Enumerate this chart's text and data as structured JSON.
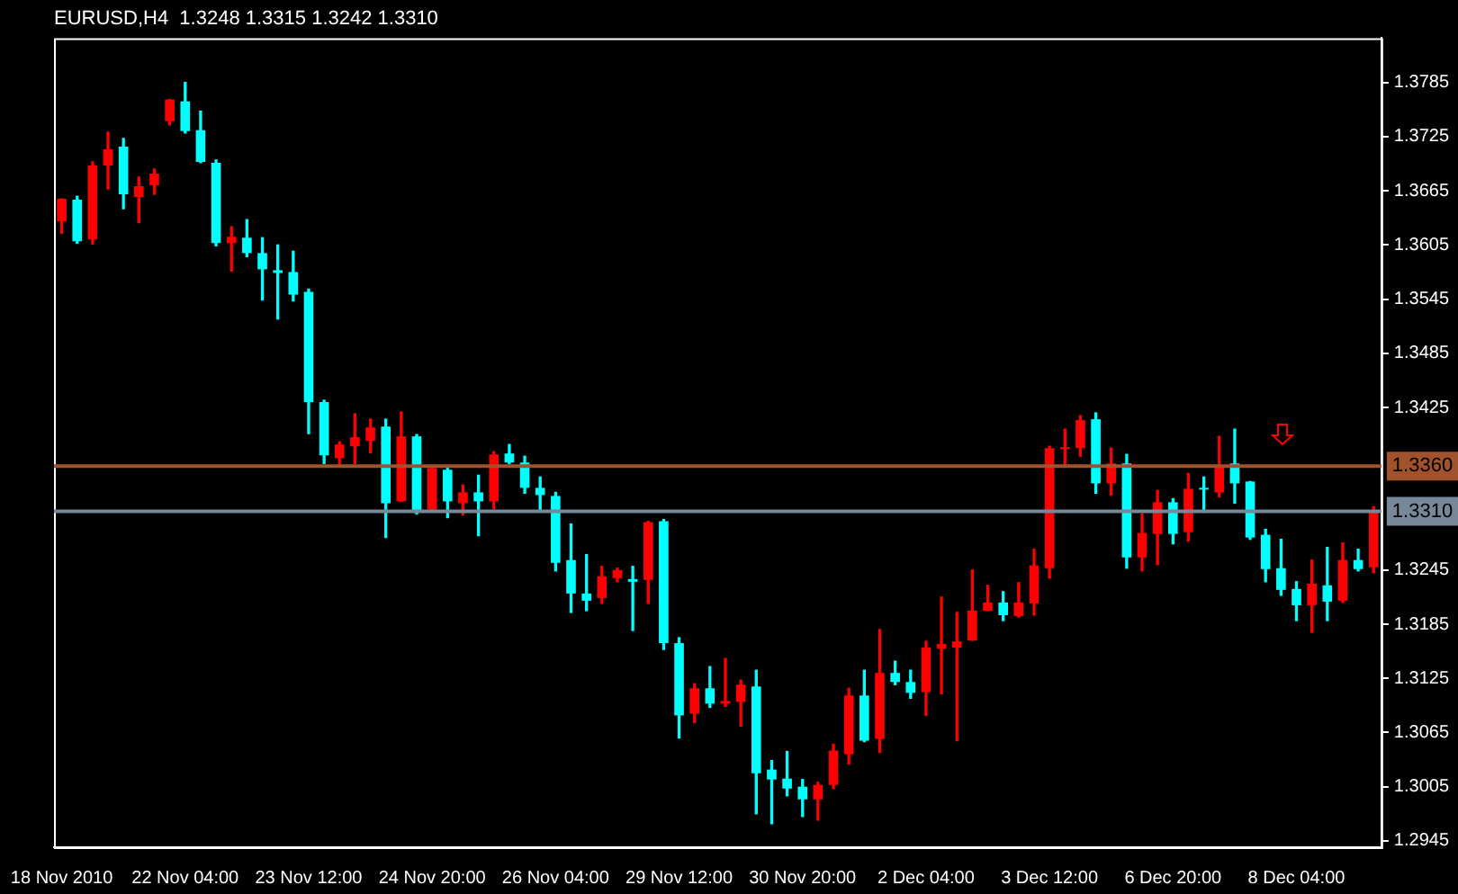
{
  "chart_data": {
    "type": "candlestick",
    "title": "EURUSD,H4  1.3248 1.3315 1.3242 1.3310",
    "categories": [
      "18 Nov 2010",
      null,
      null,
      null,
      null,
      null,
      null,
      null,
      "22 Nov 04:00",
      null,
      null,
      null,
      null,
      null,
      null,
      null,
      "23 Nov 12:00",
      null,
      null,
      null,
      null,
      null,
      null,
      null,
      "24 Nov 20:00",
      null,
      null,
      null,
      null,
      null,
      null,
      null,
      "26 Nov 04:00",
      null,
      null,
      null,
      null,
      null,
      null,
      null,
      "29 Nov 12:00",
      null,
      null,
      null,
      null,
      null,
      null,
      null,
      "30 Nov 20:00",
      null,
      null,
      null,
      null,
      null,
      null,
      null,
      "2 Dec 04:00",
      null,
      null,
      null,
      null,
      null,
      null,
      null,
      "3 Dec 12:00",
      null,
      null,
      null,
      null,
      null,
      null,
      null,
      "6 Dec 20:00",
      null,
      null,
      null,
      null,
      null,
      null,
      null,
      "8 Dec 04:00",
      null,
      null,
      null,
      null,
      null
    ],
    "ohlc": [
      [
        1.3631,
        1.3656,
        1.3618,
        1.3656
      ],
      [
        1.3655,
        1.3659,
        1.3607,
        1.3609
      ],
      [
        1.3611,
        1.3697,
        1.3606,
        1.3693
      ],
      [
        1.3693,
        1.373,
        1.3667,
        1.3711
      ],
      [
        1.3714,
        1.3723,
        1.3645,
        1.3661
      ],
      [
        1.3658,
        1.368,
        1.363,
        1.367
      ],
      [
        1.3671,
        1.3689,
        1.3661,
        1.3684
      ],
      [
        1.3742,
        1.3766,
        1.3738,
        1.3766
      ],
      [
        1.3764,
        1.3785,
        1.3729,
        1.3731
      ],
      [
        1.3732,
        1.3753,
        1.3696,
        1.3697
      ],
      [
        1.3696,
        1.3699,
        1.3604,
        1.3607
      ],
      [
        1.3607,
        1.3625,
        1.3576,
        1.3614
      ],
      [
        1.3613,
        1.3633,
        1.3592,
        1.3596
      ],
      [
        1.3596,
        1.3613,
        1.3544,
        1.3578
      ],
      [
        1.3577,
        1.3605,
        1.3523,
        1.3574
      ],
      [
        1.3575,
        1.3598,
        1.3543,
        1.355
      ],
      [
        1.3553,
        1.3556,
        1.3396,
        1.3431
      ],
      [
        1.3431,
        1.3433,
        1.3363,
        1.3372
      ],
      [
        1.3369,
        1.3387,
        1.3361,
        1.3384
      ],
      [
        1.3382,
        1.3418,
        1.3363,
        1.3392
      ],
      [
        1.3388,
        1.3412,
        1.3375,
        1.3403
      ],
      [
        1.3404,
        1.3412,
        1.3281,
        1.3319
      ],
      [
        1.3321,
        1.342,
        1.3321,
        1.3393
      ],
      [
        1.3393,
        1.3395,
        1.3307,
        1.3311
      ],
      [
        1.3312,
        1.336,
        1.3312,
        1.3358
      ],
      [
        1.3356,
        1.3358,
        1.3303,
        1.3321
      ],
      [
        1.3319,
        1.3339,
        1.3306,
        1.3331
      ],
      [
        1.3331,
        1.335,
        1.3283,
        1.3321
      ],
      [
        1.3321,
        1.3376,
        1.3313,
        1.3373
      ],
      [
        1.3374,
        1.3384,
        1.3363,
        1.3364
      ],
      [
        1.3364,
        1.3371,
        1.333,
        1.3336
      ],
      [
        1.3336,
        1.3348,
        1.3312,
        1.3328
      ],
      [
        1.3327,
        1.3331,
        1.3244,
        1.3253
      ],
      [
        1.3256,
        1.3296,
        1.3198,
        1.3219
      ],
      [
        1.3219,
        1.3262,
        1.32,
        1.3211
      ],
      [
        1.3214,
        1.3249,
        1.3208,
        1.3238
      ],
      [
        1.3236,
        1.3247,
        1.3232,
        1.3245
      ],
      [
        1.3235,
        1.3249,
        1.3178,
        1.3232
      ],
      [
        1.3234,
        1.3299,
        1.3208,
        1.3298
      ],
      [
        1.3299,
        1.3301,
        1.3157,
        1.3164
      ],
      [
        1.3164,
        1.317,
        1.3059,
        1.3084
      ],
      [
        1.3086,
        1.3119,
        1.3076,
        1.3114
      ],
      [
        1.3114,
        1.3138,
        1.3093,
        1.3097
      ],
      [
        1.3097,
        1.3147,
        1.3094,
        1.31
      ],
      [
        1.3099,
        1.3123,
        1.3072,
        1.3118
      ],
      [
        1.3116,
        1.3134,
        1.2975,
        1.302
      ],
      [
        1.3024,
        1.3034,
        1.2964,
        1.3013
      ],
      [
        1.3014,
        1.3044,
        1.2995,
        1.3003
      ],
      [
        1.3005,
        1.3013,
        1.2972,
        1.2991
      ],
      [
        1.2991,
        1.301,
        1.2968,
        1.3007
      ],
      [
        1.3007,
        1.3052,
        1.3003,
        1.3045
      ],
      [
        1.3041,
        1.3114,
        1.303,
        1.3106
      ],
      [
        1.3106,
        1.3134,
        1.3055,
        1.3056
      ],
      [
        1.3058,
        1.3179,
        1.3043,
        1.3131
      ],
      [
        1.3131,
        1.3144,
        1.3118,
        1.3121
      ],
      [
        1.3121,
        1.3134,
        1.3103,
        1.3109
      ],
      [
        1.311,
        1.3166,
        1.3084,
        1.3159
      ],
      [
        1.3158,
        1.3215,
        1.3108,
        1.3163
      ],
      [
        1.3159,
        1.3198,
        1.3056,
        1.3166
      ],
      [
        1.3167,
        1.3245,
        1.3167,
        1.32
      ],
      [
        1.32,
        1.3228,
        1.32,
        1.3209
      ],
      [
        1.3209,
        1.3221,
        1.3189,
        1.3195
      ],
      [
        1.3194,
        1.3231,
        1.3193,
        1.3209
      ],
      [
        1.3208,
        1.3268,
        1.3195,
        1.325
      ],
      [
        1.3247,
        1.3382,
        1.3236,
        1.338
      ],
      [
        1.3379,
        1.3401,
        1.3361,
        1.3381
      ],
      [
        1.338,
        1.3416,
        1.3371,
        1.3411
      ],
      [
        1.3412,
        1.3419,
        1.333,
        1.3341
      ],
      [
        1.3341,
        1.338,
        1.3328,
        1.3363
      ],
      [
        1.3363,
        1.3373,
        1.3247,
        1.3259
      ],
      [
        1.3259,
        1.3307,
        1.3244,
        1.3286
      ],
      [
        1.3285,
        1.3333,
        1.3251,
        1.332
      ],
      [
        1.332,
        1.3324,
        1.3274,
        1.3285
      ],
      [
        1.3287,
        1.3352,
        1.3277,
        1.3335
      ],
      [
        1.3336,
        1.3348,
        1.3309,
        1.3334
      ],
      [
        1.3331,
        1.3393,
        1.3326,
        1.3361
      ],
      [
        1.3363,
        1.3401,
        1.3319,
        1.3341
      ],
      [
        1.3343,
        1.3343,
        1.3279,
        1.3281
      ],
      [
        1.3284,
        1.329,
        1.3232,
        1.3246
      ],
      [
        1.3247,
        1.3279,
        1.3217,
        1.3223
      ],
      [
        1.3224,
        1.3232,
        1.3189,
        1.3206
      ],
      [
        1.3206,
        1.3256,
        1.3176,
        1.323
      ],
      [
        1.3228,
        1.327,
        1.3189,
        1.321
      ],
      [
        1.3211,
        1.3275,
        1.3209,
        1.3256
      ],
      [
        1.3256,
        1.3268,
        1.3244,
        1.3246
      ],
      [
        1.3248,
        1.3315,
        1.3242,
        1.331
      ]
    ],
    "colors": [
      "#ff0000",
      "#00ffff",
      "#ff0000",
      "#ff0000",
      "#00ffff",
      "#ff0000",
      "#ff0000",
      "#ff0000",
      "#00ffff",
      "#00ffff",
      "#00ffff",
      "#ff0000",
      "#00ffff",
      "#00ffff",
      "#00ffff",
      "#00ffff",
      "#00ffff",
      "#00ffff",
      "#ff0000",
      "#ff0000",
      "#ff0000",
      "#00ffff",
      "#ff0000",
      "#00ffff",
      "#ff0000",
      "#00ffff",
      "#ff0000",
      "#00ffff",
      "#ff0000",
      "#00ffff",
      "#00ffff",
      "#00ffff",
      "#00ffff",
      "#00ffff",
      "#00ffff",
      "#ff0000",
      "#ff0000",
      "#00ffff",
      "#ff0000",
      "#00ffff",
      "#00ffff",
      "#ff0000",
      "#00ffff",
      "#ff0000",
      "#ff0000",
      "#00ffff",
      "#00ffff",
      "#00ffff",
      "#00ffff",
      "#ff0000",
      "#ff0000",
      "#ff0000",
      "#00ffff",
      "#ff0000",
      "#00ffff",
      "#00ffff",
      "#ff0000",
      "#ff0000",
      "#ff0000",
      "#ff0000",
      "#ff0000",
      "#00ffff",
      "#ff0000",
      "#ff0000",
      "#ff0000",
      "#ff0000",
      "#ff0000",
      "#00ffff",
      "#ff0000",
      "#00ffff",
      "#ff0000",
      "#ff0000",
      "#00ffff",
      "#ff0000",
      "#00ffff",
      "#ff0000",
      "#00ffff",
      "#00ffff",
      "#00ffff",
      "#00ffff",
      "#00ffff",
      "#ff0000",
      "#00ffff",
      "#ff0000",
      "#00ffff",
      "#ff0000"
    ],
    "ylim": [
      1.2938,
      1.3834
    ],
    "yticks": [
      1.2945,
      1.3005,
      1.3065,
      1.3125,
      1.3185,
      1.3245,
      1.3425,
      1.3485,
      1.3545,
      1.3605,
      1.3665,
      1.3725,
      1.3785
    ],
    "ref_lines": [
      {
        "axis": "y",
        "value": 1.336,
        "label": "1.3360",
        "color": "#a0522d"
      },
      {
        "axis": "y",
        "value": 1.331,
        "label": "1.3310",
        "color": "#778899"
      }
    ]
  }
}
